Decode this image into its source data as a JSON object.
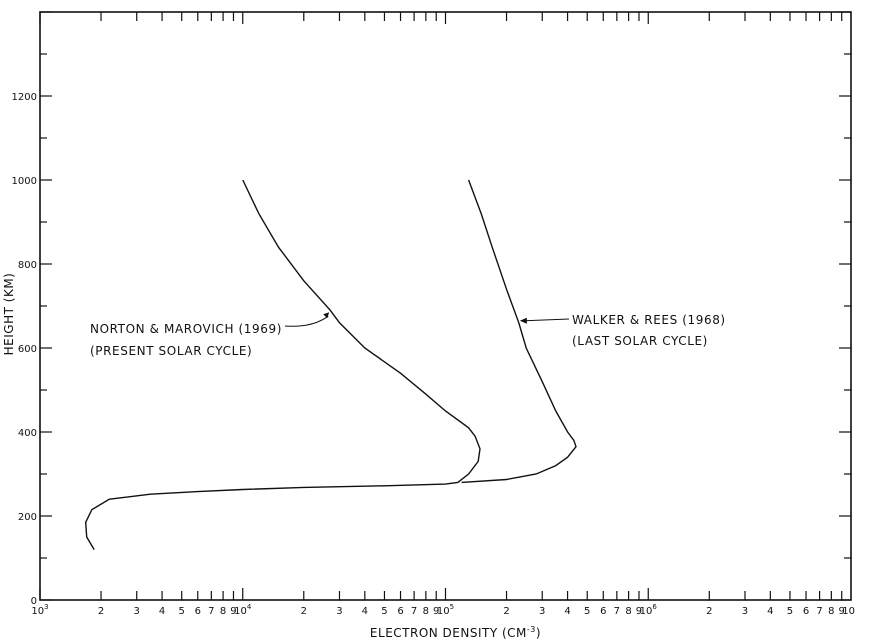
{
  "chart_data": {
    "type": "line",
    "xlabel": "ELECTRON DENSITY (CM",
    "xlabel_sup": "-3",
    "xlabel_close": ")",
    "ylabel": "HEIGHT (KM)",
    "x_scale": "log",
    "xlim": [
      1000,
      10000000
    ],
    "ylim": [
      0,
      1400
    ],
    "y_ticks": [
      0,
      200,
      400,
      600,
      800,
      1000,
      1200
    ],
    "y_tick_labels": [
      "0",
      "200",
      "400",
      "600",
      "800",
      "1000",
      "1200"
    ],
    "x_decade_labels": [
      {
        "value": 1000,
        "base": "10",
        "exp": "3"
      },
      {
        "value": 10000,
        "base": "10",
        "exp": "4"
      },
      {
        "value": 100000,
        "base": "10",
        "exp": "5"
      },
      {
        "value": 1000000,
        "base": "10",
        "exp": "6"
      },
      {
        "value": 10000000,
        "base": "10",
        "exp": ""
      }
    ],
    "x_minor_labels": [
      "2",
      "3",
      "4",
      "5",
      "6",
      "7",
      "8",
      "9"
    ],
    "series": [
      {
        "name": "NORTON & MAROVICH (1969)",
        "note": "(PRESENT SOLAR CYCLE)",
        "points": [
          [
            1850,
            120
          ],
          [
            1700,
            150
          ],
          [
            1680,
            185
          ],
          [
            1800,
            215
          ],
          [
            2200,
            240
          ],
          [
            3500,
            252
          ],
          [
            6000,
            258
          ],
          [
            10000,
            263
          ],
          [
            20000,
            268
          ],
          [
            50000,
            272
          ],
          [
            100000,
            276
          ],
          [
            115000,
            280
          ],
          [
            130000,
            300
          ],
          [
            145000,
            330
          ],
          [
            148000,
            360
          ],
          [
            140000,
            390
          ],
          [
            130000,
            410
          ],
          [
            100000,
            450
          ],
          [
            80000,
            490
          ],
          [
            60000,
            540
          ],
          [
            40000,
            600
          ],
          [
            30000,
            660
          ],
          [
            27000,
            690
          ],
          [
            20000,
            760
          ],
          [
            15000,
            840
          ],
          [
            12000,
            920
          ],
          [
            10000,
            1000
          ]
        ]
      },
      {
        "name": "WALKER & REES (1968)",
        "note": "(LAST SOLAR CYCLE)",
        "points": [
          [
            120000,
            280
          ],
          [
            200000,
            287
          ],
          [
            280000,
            300
          ],
          [
            350000,
            320
          ],
          [
            400000,
            340
          ],
          [
            440000,
            365
          ],
          [
            430000,
            380
          ],
          [
            400000,
            400
          ],
          [
            350000,
            450
          ],
          [
            300000,
            520
          ],
          [
            250000,
            600
          ],
          [
            230000,
            660
          ],
          [
            200000,
            740
          ],
          [
            170000,
            840
          ],
          [
            150000,
            920
          ],
          [
            130000,
            1000
          ]
        ]
      }
    ],
    "annotations": [
      {
        "series": 0,
        "line1": "NORTON & MAROVICH (1969)",
        "line2": "(PRESENT SOLAR CYCLE)",
        "arrow_to": [
          27000,
          690
        ]
      },
      {
        "series": 1,
        "line1": "WALKER & REES (1968)",
        "line2": "(LAST SOLAR CYCLE)",
        "arrow_to": [
          230000,
          665
        ]
      }
    ],
    "grid": false,
    "legend": "none"
  }
}
